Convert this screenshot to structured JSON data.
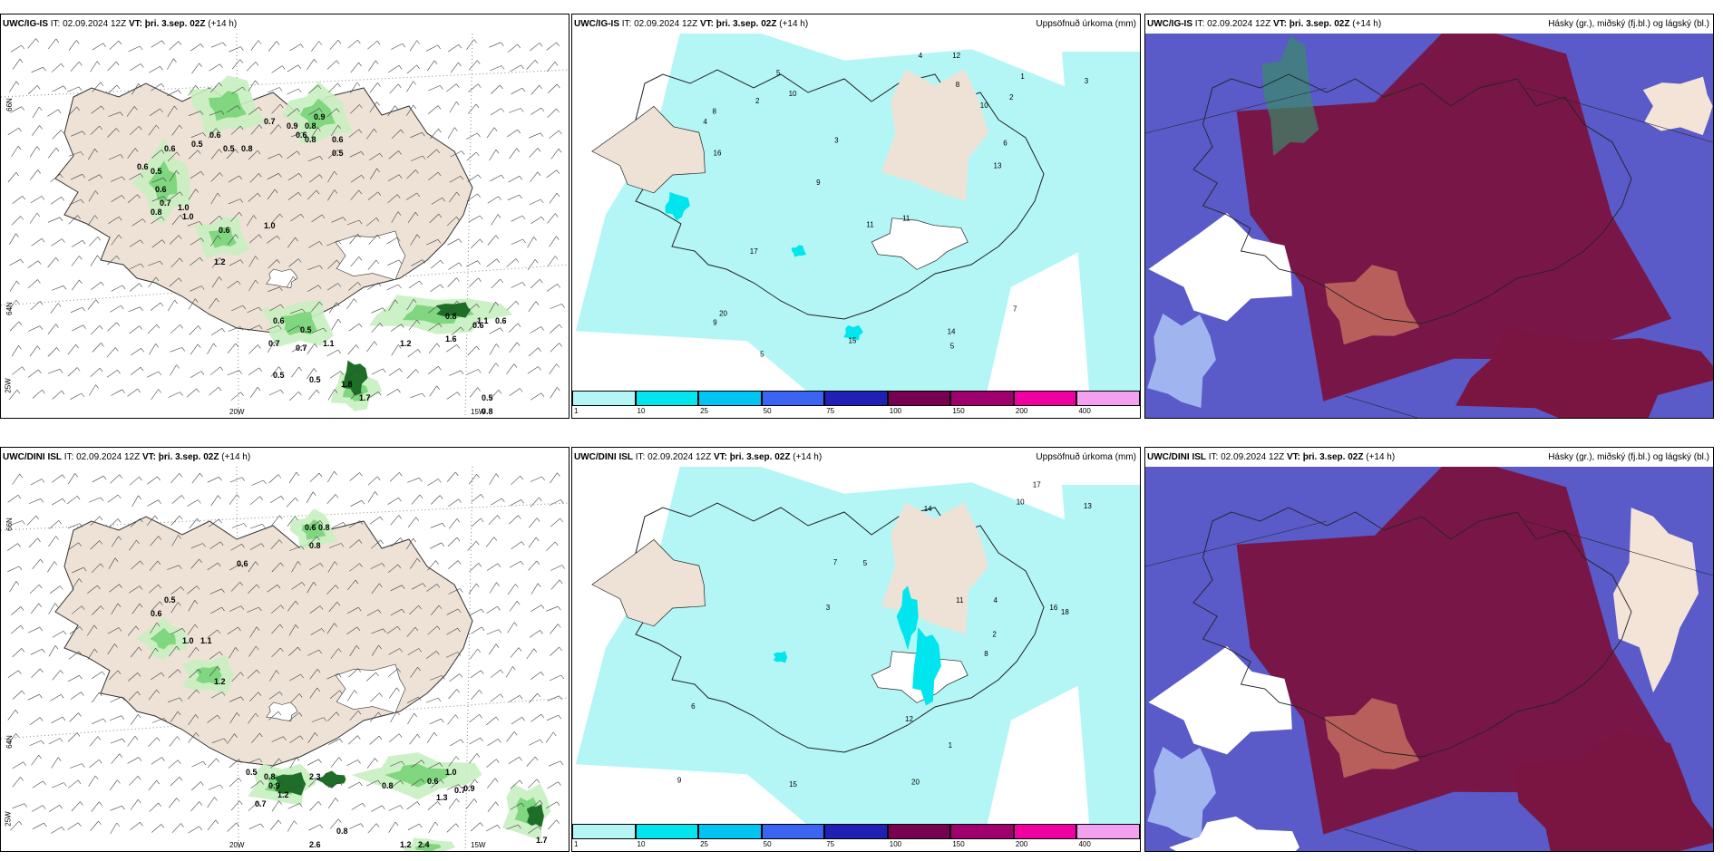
{
  "rows": [
    {
      "model": "UWC/IG-IS",
      "init_prefix": "IT:",
      "init_time": "02.09.2024 12Z",
      "valid_prefix": "VT:",
      "valid_time": "þri. 3.sep. 02Z",
      "lead": "(+14 h)",
      "wind_lat_labels": [
        "66N",
        "64N"
      ],
      "wind_lon_labels": [
        "25W",
        "20W",
        "15W"
      ],
      "precip_labels": [
        "0.6",
        "0.5",
        "0.6",
        "0.5",
        "0.8",
        "0.9",
        "0.8",
        "0.7",
        "0.9",
        "0.6",
        "0.8",
        "0.6",
        "0.5",
        "0.6",
        "0.5",
        "0.6",
        "0.7",
        "1.0",
        "0.8",
        "1.0",
        "0.6",
        "1.0",
        "1.2",
        "0.6",
        "0.5",
        "0.7",
        "0.7",
        "1.1",
        "0.5",
        "0.5",
        "1.8",
        "1.7",
        "1.2",
        "1.6",
        "0.8",
        "0.6",
        "1.1",
        "0.6",
        "0.5",
        "0.8"
      ],
      "accum_title": "Uppsöfnuð úrkoma (mm)",
      "accum_labels": [
        "5",
        "6",
        "5",
        "4",
        "2",
        "9",
        "7",
        "11",
        "8",
        "10",
        "20",
        "12",
        "17",
        "16",
        "15",
        "11",
        "13",
        "10",
        "8",
        "3",
        "4",
        "5",
        "9",
        "14",
        "2",
        "3",
        "1"
      ],
      "cloud_title": "Hásky (gr.), miðský (fj.bl.) og lágský (bl.)"
    },
    {
      "model": "UWC/DINI ISL",
      "init_prefix": "IT:",
      "init_time": "02.09.2024 12Z",
      "valid_prefix": "VT:",
      "valid_time": "þri. 3.sep. 02Z",
      "lead": "(+14 h)",
      "wind_lat_labels": [
        "66N",
        "64N"
      ],
      "wind_lon_labels": [
        "25W",
        "20W",
        "15W"
      ],
      "precip_labels": [
        "0.6",
        "0.8",
        "0.8",
        "0.6",
        "0.5",
        "0.6",
        "1.0",
        "1.1",
        "1.2",
        "0.8",
        "0.5",
        "0.9",
        "1.2",
        "0.7",
        "2.3",
        "0.8",
        "0.6",
        "1.0",
        "1.3",
        "0.7",
        "0.9",
        "0.8",
        "2.6",
        "1.7",
        "1.2",
        "2.4"
      ],
      "accum_title": "Uppsöfnuð úrkoma (mm)",
      "accum_labels": [
        "5",
        "4",
        "7",
        "8",
        "10",
        "9",
        "11",
        "13",
        "16",
        "14",
        "12",
        "15",
        "17",
        "18",
        "20",
        "2",
        "3",
        "6",
        "1"
      ],
      "cloud_title": "Hásky (gr.), miðský (fj.bl.) og lágský (bl.)"
    }
  ],
  "colorbar": {
    "ticks": [
      "1",
      "10",
      "25",
      "50",
      "75",
      "100",
      "150",
      "200",
      "400"
    ],
    "colors": [
      "#b4f6f6",
      "#00e5ee",
      "#00c4f2",
      "#3c64f2",
      "#2020b4",
      "#780050",
      "#a0006e",
      "#f000a0",
      "#f4a0f0"
    ]
  },
  "colors": {
    "land": "#eee2d6",
    "sea_precip": "#b4f6f6",
    "rain_light": "#c8f0c0",
    "rain_mid": "#78d478",
    "rain_dark": "#1e6e28",
    "cloud_high": "#7a1440",
    "cloud_mid": "#5a5ac8",
    "cloud_low": "#a0b4f0"
  }
}
